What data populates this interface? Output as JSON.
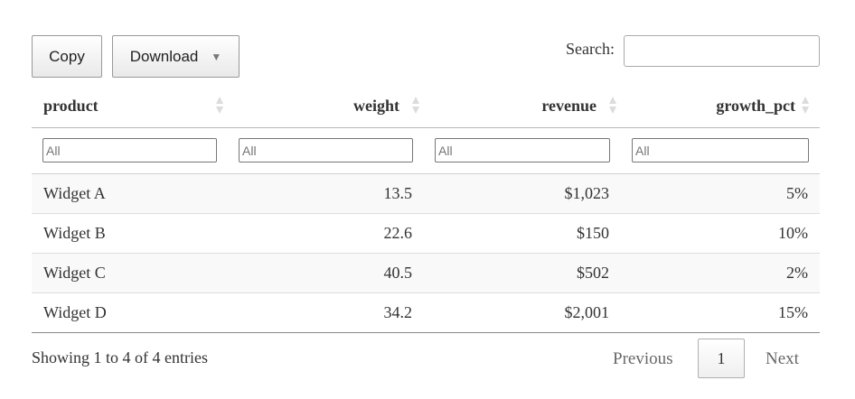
{
  "toolbar": {
    "copy_label": "Copy",
    "download_label": "Download",
    "download_caret": "▼"
  },
  "search": {
    "label": "Search:",
    "value": ""
  },
  "table": {
    "columns": [
      {
        "label": "product",
        "align": "left"
      },
      {
        "label": "weight",
        "align": "right"
      },
      {
        "label": "revenue",
        "align": "right"
      },
      {
        "label": "growth_pct",
        "align": "right"
      }
    ],
    "filters": [
      "All",
      "All",
      "All",
      "All"
    ],
    "rows": [
      [
        "Widget A",
        "13.5",
        "$1,023",
        "5%"
      ],
      [
        "Widget B",
        "22.6",
        "$150",
        "10%"
      ],
      [
        "Widget C",
        "40.5",
        "$502",
        "2%"
      ],
      [
        "Widget D",
        "34.2",
        "$2,001",
        "15%"
      ]
    ]
  },
  "footer": {
    "info": "Showing 1 to 4 of 4 entries",
    "previous_label": "Previous",
    "current_page": "1",
    "next_label": "Next"
  }
}
